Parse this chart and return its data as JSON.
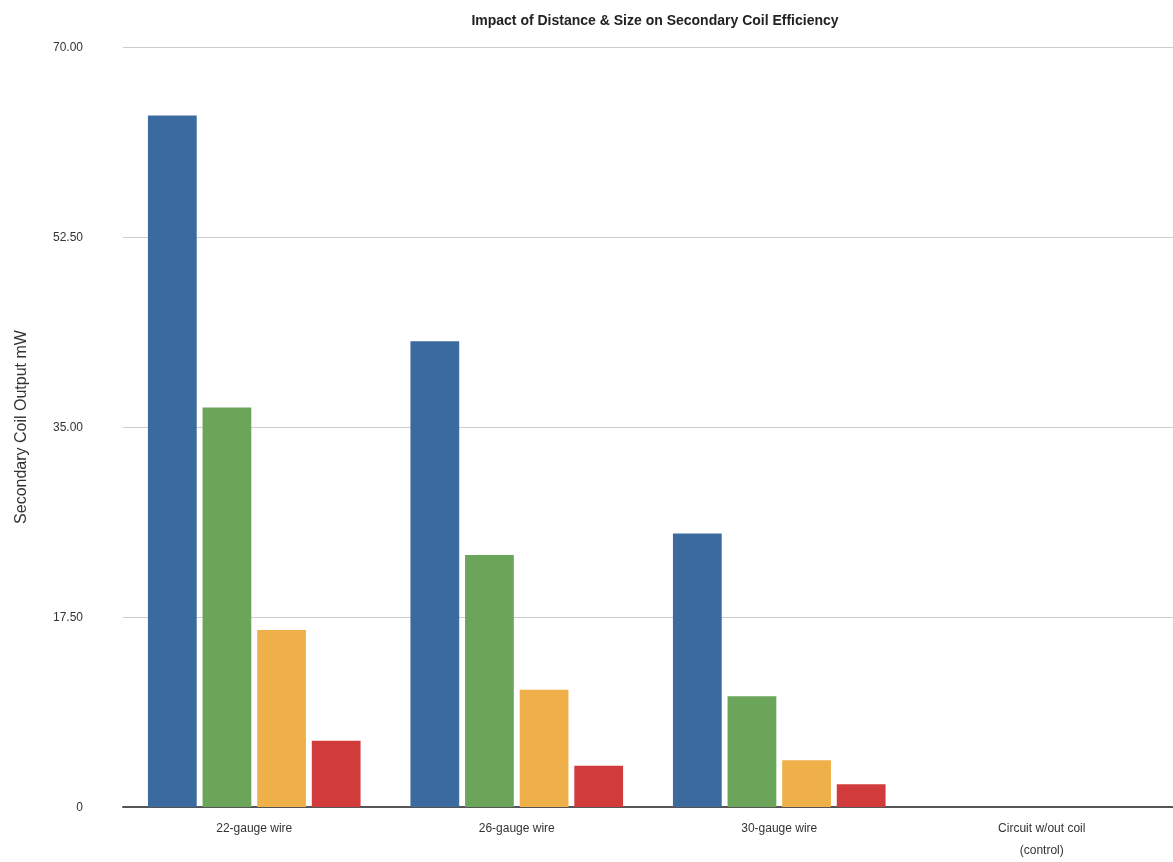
{
  "chart_data": {
    "type": "bar",
    "title": "Impact of Distance & Size on Secondary Coil Efficiency",
    "ylabel": "Secondary Coil Output mW",
    "categories": [
      "22-gauge wire",
      "26-gauge wire",
      "30-gauge wire",
      "Circuit w/out coil\n(control)"
    ],
    "series": [
      {
        "color": "#3a6a9e",
        "values": [
          63.7,
          42.9,
          25.2,
          0
        ]
      },
      {
        "color": "#6aa55a",
        "values": [
          36.8,
          23.2,
          10.2,
          0
        ]
      },
      {
        "color": "#efb04a",
        "values": [
          16.3,
          10.8,
          4.3,
          0
        ]
      },
      {
        "color": "#d23b3b",
        "values": [
          6.1,
          3.8,
          2.1,
          0
        ]
      }
    ],
    "ylim": [
      0,
      70
    ],
    "yticks": [
      0,
      {
        "value": 17.5,
        "label": "17.50"
      },
      {
        "value": 35,
        "label": "35.00"
      },
      {
        "value": 52.5,
        "label": "52.50"
      },
      {
        "value": 70,
        "label": "70.00"
      }
    ],
    "grid": "y"
  }
}
